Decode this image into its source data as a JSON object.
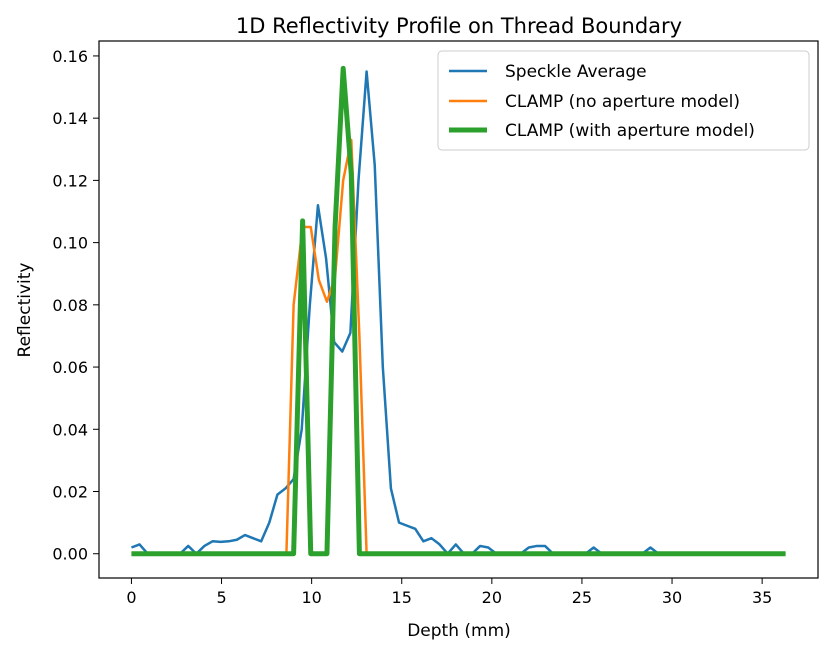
{
  "chart_data": {
    "type": "line",
    "title": "1D Reflectivity Profile on Thread Boundary",
    "xlabel": "Depth (mm)",
    "ylabel": "Reflectivity",
    "xlim": [
      -1.8,
      38.1
    ],
    "ylim": [
      -0.0078,
      0.1648
    ],
    "xticks": [
      0,
      5,
      10,
      15,
      20,
      25,
      30,
      35
    ],
    "xtick_labels": [
      "0",
      "5",
      "10",
      "15",
      "20",
      "25",
      "30",
      "35"
    ],
    "yticks": [
      0.0,
      0.02,
      0.04,
      0.06,
      0.08,
      0.1,
      0.12,
      0.14,
      0.16
    ],
    "ytick_labels": [
      "0.00",
      "0.02",
      "0.04",
      "0.06",
      "0.08",
      "0.10",
      "0.12",
      "0.14",
      "0.16"
    ],
    "grid": false,
    "legend_position": "top-right",
    "series": [
      {
        "name": "Speckle Average",
        "color": "#1f77b4",
        "line_width": "thin",
        "x": [
          0,
          0.45,
          0.9,
          1.35,
          1.8,
          2.25,
          2.7,
          3.15,
          3.6,
          4.05,
          4.5,
          4.95,
          5.4,
          5.85,
          6.3,
          6.75,
          7.2,
          7.65,
          8.1,
          8.55,
          9.0,
          9.45,
          9.9,
          10.35,
          10.8,
          11.25,
          11.7,
          12.15,
          12.6,
          13.05,
          13.5,
          13.95,
          14.4,
          14.85,
          15.3,
          15.75,
          16.2,
          16.65,
          17.1,
          17.55,
          18.0,
          18.45,
          18.9,
          19.35,
          19.8,
          20.25,
          20.7,
          21.15,
          21.6,
          22.05,
          22.5,
          22.95,
          23.4,
          23.85,
          24.3,
          24.75,
          25.2,
          25.65,
          26.1,
          26.55,
          27.0,
          27.45,
          27.9,
          28.35,
          28.8,
          29.25,
          29.7,
          30.15,
          30.6,
          31.05,
          31.5,
          31.95,
          32.4,
          32.85,
          33.3,
          33.75,
          34.2,
          34.65,
          35.1,
          35.55,
          36.0,
          36.3
        ],
        "y": [
          0.002,
          0.003,
          0.0,
          0.0,
          0.0,
          0.0,
          0.0,
          0.0025,
          0.0,
          0.0025,
          0.004,
          0.0038,
          0.004,
          0.0045,
          0.006,
          0.005,
          0.004,
          0.01,
          0.019,
          0.021,
          0.024,
          0.04,
          0.08,
          0.112,
          0.095,
          0.068,
          0.065,
          0.071,
          0.12,
          0.155,
          0.125,
          0.06,
          0.021,
          0.01,
          0.009,
          0.008,
          0.004,
          0.005,
          0.003,
          0.0,
          0.003,
          0.0,
          0.0,
          0.0025,
          0.002,
          0.0,
          0.0,
          0.0,
          0.0,
          0.002,
          0.0025,
          0.0025,
          0.0,
          0.0,
          0.0,
          0.0,
          0.0,
          0.002,
          0.0,
          0.0,
          0.0,
          0.0,
          0.0,
          0.0,
          0.002,
          0.0,
          0.0,
          0.0,
          0.0,
          0.0,
          0.0,
          0.0,
          0.0,
          0.0,
          0.0,
          0.0,
          0.0,
          0.0,
          0.0,
          0.0,
          0.0,
          0.0
        ]
      },
      {
        "name": "CLAMP (no aperture model)",
        "color": "#ff7f0e",
        "line_width": "thin",
        "x": [
          0,
          8.6,
          9.0,
          9.5,
          9.95,
          10.4,
          10.85,
          11.3,
          11.75,
          12.2,
          12.65,
          13.05,
          36.3
        ],
        "y": [
          0,
          0.0,
          0.08,
          0.105,
          0.105,
          0.088,
          0.081,
          0.089,
          0.12,
          0.133,
          0.07,
          0.0,
          0.0
        ]
      },
      {
        "name": "CLAMP (with aperture model)",
        "color": "#2ca02c",
        "line_width": "thick",
        "x": [
          0,
          9.0,
          9.5,
          9.95,
          10.4,
          10.85,
          11.3,
          11.75,
          12.2,
          12.65,
          36.3
        ],
        "y": [
          0,
          0.0,
          0.107,
          0.0,
          0.0,
          0.0,
          0.105,
          0.156,
          0.122,
          0.0,
          0.0
        ]
      }
    ]
  }
}
